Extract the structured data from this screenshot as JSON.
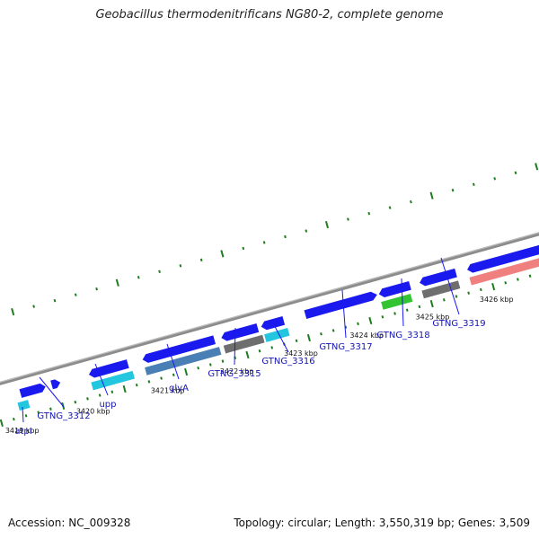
{
  "title": "Geobacillus thermodenitrificans NG80-2, complete genome",
  "accession": "Accession: NC_009328",
  "summary": "Topology: circular; Length: 3,550,319 bp; Genes: 3,509",
  "colors": {
    "forward_gene": "#1a1aee",
    "backbone": "#8c8c8c",
    "tick": "#1e7d1e",
    "label": "#1414b4",
    "cyan_feature": "#22c6de",
    "steelblue_feature": "#4a7fb5",
    "gray_feature": "#6e6e6e",
    "green_feature": "#33c433",
    "salmon_feature": "#f08080"
  },
  "ruler": [
    {
      "label": "3419 kbp"
    },
    {
      "label": "3420 kbp"
    },
    {
      "label": "3421 kbp"
    },
    {
      "label": "3422 kbp"
    },
    {
      "label": "3423 kbp"
    },
    {
      "label": "3424 kbp"
    },
    {
      "label": "3425 kbp"
    },
    {
      "label": "3426 kbp"
    }
  ],
  "gene_labels": [
    {
      "name": "atpI"
    },
    {
      "name": "GTNG_3312"
    },
    {
      "name": "upp"
    },
    {
      "name": "glyA"
    },
    {
      "name": "GTNG_3315"
    },
    {
      "name": "GTNG_3316"
    },
    {
      "name": "GTNG_3317"
    },
    {
      "name": "GTNG_3318"
    },
    {
      "name": "GTNG_3319"
    }
  ]
}
